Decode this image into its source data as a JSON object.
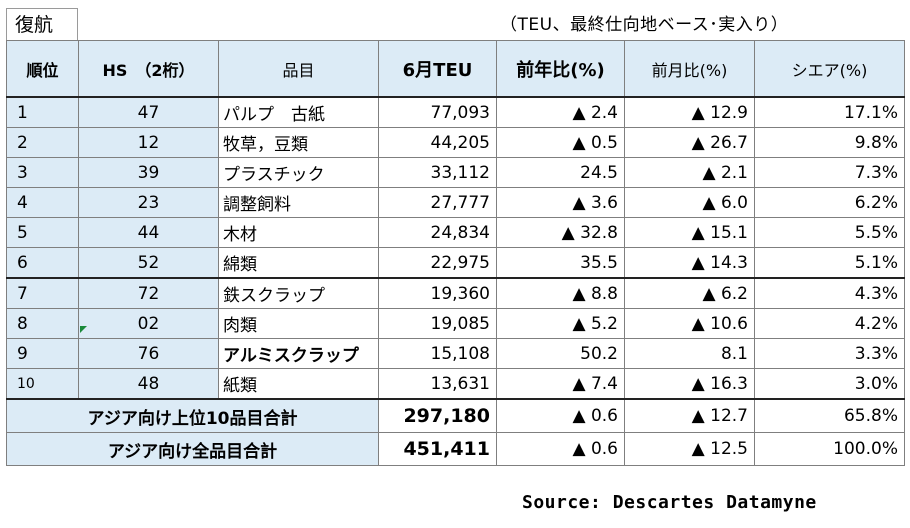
{
  "header": {
    "label": "復航",
    "unit_note": "（TEU、最終仕向地ベース･実入り）"
  },
  "columns": {
    "rank": "順位",
    "hs": "HS　（2桁）",
    "item": "品目",
    "teu": "6月TEU",
    "yoy": "前年比(%)",
    "mom": "前月比(%)",
    "share": "シエア(%)"
  },
  "rows": [
    {
      "rank": "1",
      "hs": "47",
      "item": "パルプ　古紙",
      "teu": "77,093",
      "yoy": "▲ 2.4",
      "mom": "▲ 12.9",
      "share": "17.1%"
    },
    {
      "rank": "2",
      "hs": "12",
      "item": "牧草，豆類",
      "teu": "44,205",
      "yoy": "▲ 0.5",
      "mom": "▲ 26.7",
      "share": "9.8%"
    },
    {
      "rank": "3",
      "hs": "39",
      "item": "プラスチック",
      "teu": "33,112",
      "yoy": "24.5",
      "mom": "▲ 2.1",
      "share": "7.3%"
    },
    {
      "rank": "4",
      "hs": "23",
      "item": "調整飼料",
      "teu": "27,777",
      "yoy": "▲ 3.6",
      "mom": "▲ 6.0",
      "share": "6.2%"
    },
    {
      "rank": "5",
      "hs": "44",
      "item": "木材",
      "teu": "24,834",
      "yoy": "▲ 32.8",
      "mom": "▲ 15.1",
      "share": "5.5%"
    },
    {
      "rank": "6",
      "hs": "52",
      "item": "綿類",
      "teu": "22,975",
      "yoy": "35.5",
      "mom": "▲ 14.3",
      "share": "5.1%"
    },
    {
      "rank": "7",
      "hs": "72",
      "item": "鉄スクラップ",
      "teu": "19,360",
      "yoy": "▲ 8.8",
      "mom": "▲ 6.2",
      "share": "4.3%"
    },
    {
      "rank": "8",
      "hs": "02",
      "item": "肉類",
      "teu": "19,085",
      "yoy": "▲ 5.2",
      "mom": "▲ 10.6",
      "share": "4.2%"
    },
    {
      "rank": "9",
      "hs": "76",
      "item": "アルミスクラップ",
      "teu": "15,108",
      "yoy": "50.2",
      "mom": "8.1",
      "share": "3.3%"
    },
    {
      "rank": "10",
      "hs": "48",
      "item": "紙類",
      "teu": "13,631",
      "yoy": "▲ 7.4",
      "mom": "▲ 16.3",
      "share": "3.0%"
    }
  ],
  "totals": [
    {
      "label": "アジア向け上位10品目合計",
      "teu": "297,180",
      "yoy": "▲ 0.6",
      "mom": "▲ 12.7",
      "share": "65.8%"
    },
    {
      "label": "アジア向け全品目合計",
      "teu": "451,411",
      "yoy": "▲ 0.6",
      "mom": "▲ 12.5",
      "share": "100.0%"
    }
  ],
  "source": "Source: Descartes Datamyne",
  "colors": {
    "header_bg": "#dcebf6",
    "flag": "#1a8a3a"
  }
}
